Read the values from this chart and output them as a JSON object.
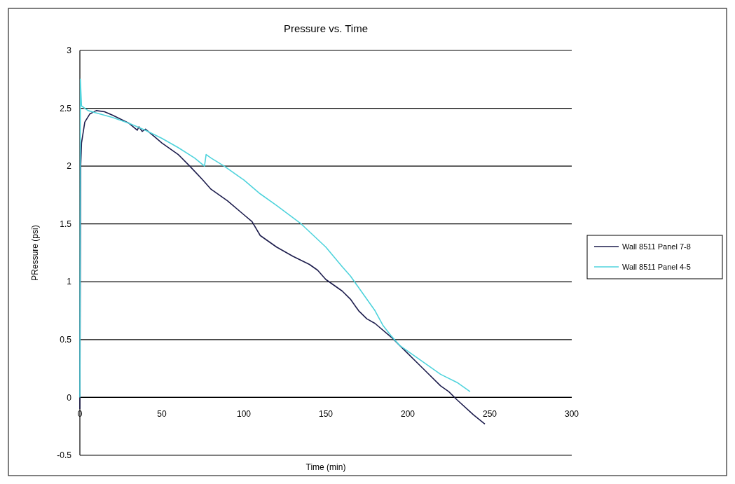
{
  "chart_data": {
    "type": "line",
    "title": "Pressure  vs. Time",
    "xlabel": "Time (min)",
    "ylabel": "PRessure (psi)",
    "xlim": [
      0,
      300
    ],
    "xticks": [
      0,
      50,
      100,
      150,
      200,
      250,
      300
    ],
    "ylim": [
      -0.5,
      3
    ],
    "yticks": [
      -0.5,
      0,
      0.5,
      1,
      1.5,
      2,
      2.5,
      3
    ],
    "grid": "y",
    "legend": "right",
    "marker": "none",
    "line_style": "solid",
    "series": [
      {
        "name": "Wall 8511 Panel 7-8",
        "color": "#1c1c4c",
        "x": [
          0,
          0.5,
          1,
          3,
          6,
          10,
          15,
          20,
          30,
          35,
          36,
          38,
          40,
          45,
          50,
          60,
          67,
          75,
          80,
          90,
          100,
          105,
          110,
          120,
          130,
          140,
          145,
          150,
          160,
          165,
          170,
          175,
          180,
          190,
          200,
          210,
          220,
          225,
          230,
          240,
          247
        ],
        "values": [
          -0.1,
          2.0,
          2.2,
          2.38,
          2.45,
          2.48,
          2.47,
          2.44,
          2.37,
          2.31,
          2.34,
          2.3,
          2.32,
          2.26,
          2.2,
          2.1,
          2.0,
          1.88,
          1.8,
          1.7,
          1.58,
          1.52,
          1.4,
          1.3,
          1.22,
          1.15,
          1.1,
          1.02,
          0.92,
          0.85,
          0.75,
          0.68,
          0.64,
          0.52,
          0.38,
          0.24,
          0.1,
          0.05,
          -0.02,
          -0.15,
          -0.23
        ]
      },
      {
        "name": "Wall 8511 Panel 4-5",
        "color": "#4fd3dc",
        "x": [
          0,
          0.3,
          1,
          5,
          10,
          20,
          30,
          40,
          50,
          60,
          70,
          76,
          77,
          80,
          88,
          100,
          110,
          120,
          135,
          150,
          160,
          165,
          170,
          175,
          180,
          185,
          190,
          195,
          200,
          210,
          220,
          230,
          238
        ],
        "values": [
          0,
          2.75,
          2.52,
          2.48,
          2.46,
          2.42,
          2.37,
          2.31,
          2.24,
          2.16,
          2.07,
          2.0,
          2.1,
          2.07,
          2.0,
          1.88,
          1.76,
          1.66,
          1.5,
          1.3,
          1.13,
          1.05,
          0.95,
          0.85,
          0.75,
          0.62,
          0.53,
          0.45,
          0.4,
          0.3,
          0.2,
          0.13,
          0.05
        ]
      }
    ]
  }
}
